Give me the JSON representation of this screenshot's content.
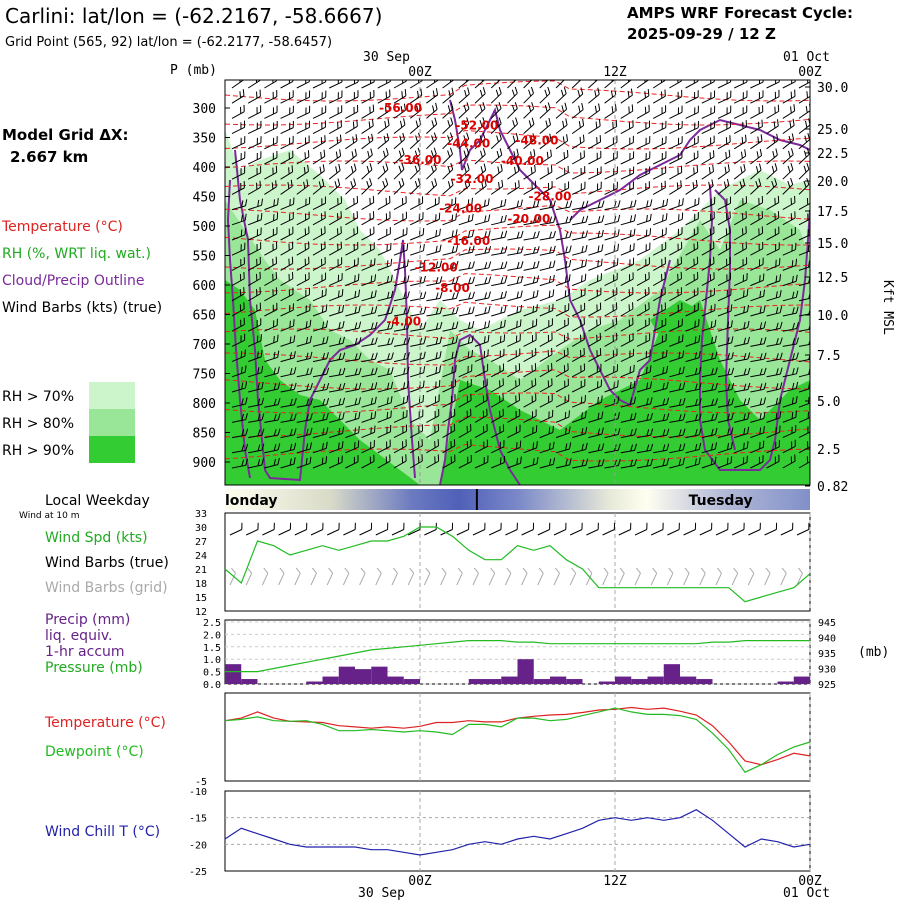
{
  "header": {
    "title": "Carlini:  lat/lon = (-62.2167, -58.6667)",
    "subtitle": "Grid Point (565, 92) lat/lon = (-62.2177, -58.6457)",
    "cycle_line1": "AMPS WRF Forecast Cycle:",
    "cycle_line2": "2025-09-29 / 12  Z"
  },
  "time_axis": {
    "top_date_left": "30 Sep",
    "top_date_right": "01 Oct",
    "bottom_date_left": "30 Sep",
    "bottom_date_right": "01 Oct",
    "ticks": [
      {
        "label": "00Z",
        "hour": 12
      },
      {
        "label": "12Z",
        "hour": 24
      },
      {
        "label": "00Z",
        "hour": 36
      }
    ],
    "hours_range": [
      0,
      36
    ]
  },
  "left_panel": {
    "model_grid_label": "Model Grid ΔX:",
    "model_grid_value": "2.667 km",
    "legend": [
      {
        "text": "Temperature (°C)",
        "color": "#dd2222"
      },
      {
        "text": "RH (%, WRT liq. wat.)",
        "color": "#22aa22"
      },
      {
        "text": "Cloud/Precip Outline",
        "color": "#7a2a9a"
      },
      {
        "text": "Wind Barbs (kts) (true)",
        "color": "#000000"
      }
    ],
    "rh_legend": [
      {
        "text": "RH > 70%",
        "color": "#ccf5cc"
      },
      {
        "text": "RH > 80%",
        "color": "#99e699"
      },
      {
        "text": "RH > 90%",
        "color": "#33cc33"
      }
    ],
    "weekday_label": "Local Weekday",
    "wind_10m_label": "Wind at 10 m"
  },
  "weekday_bar": {
    "days": [
      {
        "label": "londay",
        "at_hour": 0
      },
      {
        "label": "Tuesday",
        "at_hour": 30.5
      }
    ],
    "midnight_hour": 15.5
  },
  "chart_data": [
    {
      "type": "cross-section",
      "name": "upper-air",
      "ylabel_left": "P (mb)",
      "ylabel_right": "Kft MSL",
      "pressure_ticks": [
        300,
        350,
        400,
        450,
        500,
        550,
        600,
        650,
        700,
        750,
        800,
        850,
        900
      ],
      "height_ticks": [
        "30.0",
        "25.0",
        "22.5",
        "20.0",
        "17.5",
        "15.0",
        "12.5",
        "10.0",
        "7.5",
        "5.0",
        "2.5",
        "0.82"
      ],
      "temperature_contour_labels": [
        {
          "text": "-56.00",
          "hour": 10.8,
          "p": 300
        },
        {
          "text": "-52.00",
          "hour": 15.5,
          "p": 330
        },
        {
          "text": "-44.00",
          "hour": 15.0,
          "p": 360
        },
        {
          "text": "-48.00",
          "hour": 19.2,
          "p": 355
        },
        {
          "text": "-36.00",
          "hour": 12.0,
          "p": 388
        },
        {
          "text": "-40.00",
          "hour": 18.3,
          "p": 390
        },
        {
          "text": "-32.00",
          "hour": 15.2,
          "p": 420
        },
        {
          "text": "-28.00",
          "hour": 20.0,
          "p": 450
        },
        {
          "text": "-24.00",
          "hour": 14.5,
          "p": 470
        },
        {
          "text": "-20.00",
          "hour": 18.7,
          "p": 488
        },
        {
          "text": "-16.00",
          "hour": 15.0,
          "p": 525
        },
        {
          "text": "-12.00",
          "hour": 13.0,
          "p": 570
        },
        {
          "text": "-8.00",
          "hour": 14.0,
          "p": 605
        },
        {
          "text": "-4.00",
          "hour": 11.0,
          "p": 662
        }
      ]
    },
    {
      "type": "line",
      "name": "wind-speed",
      "ylim": [
        12,
        33
      ],
      "yticks": [
        12,
        15,
        18,
        21,
        24,
        27,
        30,
        33
      ],
      "series": [
        {
          "name": "Wind Spd (kts)",
          "color": "#22bb22",
          "x": [
            0,
            1,
            2,
            3,
            4,
            5,
            6,
            7,
            8,
            9,
            10,
            11,
            12,
            13,
            14,
            15,
            16,
            17,
            18,
            19,
            20,
            21,
            22,
            23,
            24,
            25,
            26,
            27,
            28,
            29,
            30,
            31,
            32,
            33,
            34,
            35,
            36
          ],
          "values": [
            21,
            18,
            27,
            26,
            24,
            25,
            26,
            25,
            26,
            27,
            27,
            28,
            30,
            30,
            28,
            25,
            23,
            23,
            26,
            25,
            26,
            23,
            21,
            17,
            17,
            17,
            17,
            17,
            17,
            17,
            17,
            17,
            14,
            15,
            16,
            17,
            20
          ]
        }
      ],
      "labels": [
        {
          "text": "Wind Spd (kts)",
          "color": "#22aa22"
        },
        {
          "text": "Wind Barbs (true)",
          "color": "#000000"
        },
        {
          "text": "Wind Barbs (grid)",
          "color": "#aaaaaa"
        }
      ]
    },
    {
      "type": "bar+line",
      "name": "precip-pressure",
      "ylim_left": [
        0,
        2.5
      ],
      "yticks_left": [
        "0.0",
        "0.5",
        "1.0",
        "1.5",
        "2.0",
        "2.5"
      ],
      "ylim_right": [
        925,
        945
      ],
      "yticks_right": [
        925,
        930,
        935,
        940,
        945
      ],
      "ylabel_right": "(mb)",
      "labels": [
        {
          "text": "Precip (mm)",
          "color": "#662288"
        },
        {
          "text": "liq. equiv.",
          "color": "#662288"
        },
        {
          "text": "1-hr accum",
          "color": "#662288"
        },
        {
          "text": "Pressure (mb)",
          "color": "#22aa22"
        }
      ],
      "precip_bar_color": "#662288",
      "precip": {
        "hour": [
          0,
          1,
          2,
          3,
          4,
          5,
          6,
          7,
          8,
          9,
          10,
          11,
          12,
          13,
          14,
          15,
          16,
          17,
          18,
          19,
          20,
          21,
          22,
          23,
          24,
          25,
          26,
          27,
          28,
          29,
          30,
          31,
          32,
          33,
          34,
          35
        ],
        "values": [
          0.8,
          0.2,
          0.0,
          0.0,
          0.0,
          0.1,
          0.3,
          0.7,
          0.6,
          0.7,
          0.3,
          0.2,
          0.0,
          0.0,
          0.0,
          0.2,
          0.2,
          0.3,
          1.0,
          0.2,
          0.3,
          0.2,
          0.0,
          0.1,
          0.3,
          0.2,
          0.3,
          0.8,
          0.3,
          0.2,
          0.0,
          0.0,
          0.0,
          0.0,
          0.1,
          0.3
        ]
      },
      "pressure": {
        "hour": [
          0,
          1,
          2,
          3,
          4,
          5,
          6,
          7,
          8,
          9,
          10,
          11,
          12,
          13,
          14,
          15,
          16,
          17,
          18,
          19,
          20,
          21,
          22,
          23,
          24,
          25,
          26,
          27,
          28,
          29,
          30,
          31,
          32,
          33,
          34,
          35,
          36
        ],
        "values": [
          929,
          929,
          929,
          930,
          931,
          932,
          933,
          934,
          935,
          936,
          936.5,
          937,
          937.5,
          938,
          938.5,
          939,
          939,
          939,
          938.5,
          938.5,
          938,
          938,
          938,
          938,
          938,
          938,
          938,
          938,
          938,
          938,
          938.5,
          938.5,
          939,
          939,
          939,
          939,
          939
        ]
      }
    },
    {
      "type": "line",
      "name": "temperature-dewpoint",
      "yticks": [
        -5
      ],
      "ylim": [
        -5,
        9
      ],
      "labels": [
        {
          "text": "Temperature (°C)",
          "color": "#dd2222"
        },
        {
          "text": "Dewpoint (°C)",
          "color": "#22bb22"
        }
      ],
      "series": [
        {
          "name": "Temperature (°C)",
          "color": "#dd2222",
          "x": [
            0,
            1,
            2,
            3,
            4,
            5,
            6,
            7,
            8,
            9,
            10,
            11,
            12,
            13,
            14,
            15,
            16,
            17,
            18,
            19,
            20,
            21,
            22,
            23,
            24,
            25,
            26,
            27,
            28,
            29,
            30,
            31,
            32,
            33,
            34,
            35,
            36
          ],
          "values": [
            4.6,
            5.0,
            6.0,
            5.0,
            4.5,
            4.4,
            4.3,
            3.8,
            3.6,
            3.4,
            3.6,
            3.4,
            3.7,
            4.3,
            4.3,
            4.6,
            4.4,
            4.4,
            5.0,
            5.3,
            5.5,
            5.6,
            5.9,
            6.3,
            6.4,
            6.7,
            6.4,
            6.6,
            6.1,
            5.5,
            3.8,
            1.2,
            -1.8,
            -2.4,
            -1.6,
            -0.6,
            -1.0
          ]
        },
        {
          "name": "Dewpoint (°C)",
          "color": "#22bb22",
          "x": [
            0,
            1,
            2,
            3,
            4,
            5,
            6,
            7,
            8,
            9,
            10,
            11,
            12,
            13,
            14,
            15,
            16,
            17,
            18,
            19,
            20,
            21,
            22,
            23,
            24,
            25,
            26,
            27,
            28,
            29,
            30,
            31,
            32,
            33,
            34,
            35,
            36
          ],
          "values": [
            4.6,
            4.8,
            5.2,
            4.6,
            4.5,
            4.6,
            4.0,
            3.0,
            3.0,
            3.2,
            3.0,
            2.8,
            3.0,
            2.8,
            2.4,
            4.0,
            4.0,
            3.6,
            5.0,
            5.0,
            4.6,
            4.8,
            5.4,
            6.0,
            6.6,
            6.0,
            5.6,
            5.6,
            5.4,
            4.8,
            2.6,
            0.0,
            -3.6,
            -2.4,
            -0.8,
            0.4,
            1.2
          ]
        }
      ]
    },
    {
      "type": "line",
      "name": "wind-chill",
      "ylim": [
        -25,
        -10
      ],
      "yticks": [
        -25,
        -20,
        -15,
        -10
      ],
      "labels": [
        {
          "text": "Wind Chill T (°C)",
          "color": "#2222aa"
        }
      ],
      "series": [
        {
          "name": "Wind Chill T (°C)",
          "color": "#2222aa",
          "x": [
            0,
            1,
            2,
            3,
            4,
            5,
            6,
            7,
            8,
            9,
            10,
            11,
            12,
            13,
            14,
            15,
            16,
            17,
            18,
            19,
            20,
            21,
            22,
            23,
            24,
            25,
            26,
            27,
            28,
            29,
            30,
            31,
            32,
            33,
            34,
            35,
            36
          ],
          "values": [
            -19,
            -17,
            -18,
            -19,
            -20,
            -20.5,
            -20.5,
            -20.5,
            -20.5,
            -21,
            -21,
            -21.5,
            -22,
            -21.5,
            -21,
            -20,
            -19.5,
            -20,
            -19,
            -18.5,
            -19,
            -18,
            -17,
            -15.5,
            -15,
            -15.5,
            -15,
            -15.5,
            -15,
            -13.5,
            -15.5,
            -18,
            -20.5,
            -19,
            -19.5,
            -20.5,
            -20
          ]
        }
      ]
    }
  ]
}
